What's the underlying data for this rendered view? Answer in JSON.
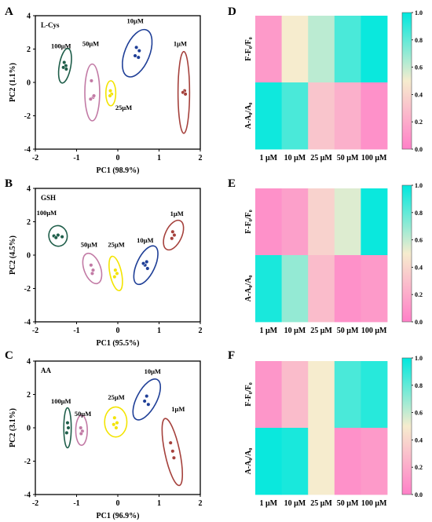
{
  "figure": {
    "colors": {
      "c100": "#1f5e4a",
      "c50": "#c27aa5",
      "c25": "#f3e400",
      "c10": "#1f3f97",
      "c1": "#a5413c",
      "heat_low": "#ff80c8",
      "heat_mid": "#f6ecce",
      "heat_high": "#00e8de"
    }
  },
  "chart_data": [
    {
      "panel": "A",
      "type": "scatter",
      "analyte": "L-Cys",
      "xlabel": "PC1 (98.9%)",
      "ylabel": "PC2 (1.1%)",
      "xlim": [
        -2,
        2
      ],
      "ylim": [
        -4,
        4
      ],
      "xticks": [
        "-2",
        "-1",
        "0",
        "1",
        "2"
      ],
      "yticks": [
        "-4",
        "-2",
        "0",
        "2",
        "4"
      ],
      "series": [
        {
          "name": "100μM",
          "color_key": "c100",
          "ellipse": {
            "cx": -1.28,
            "cy": 1.0,
            "rx": 0.14,
            "ry": 1.05,
            "rot": 10
          },
          "points": [
            [
              -1.3,
              1.2
            ],
            [
              -1.26,
              1.0
            ],
            [
              -1.32,
              0.9
            ],
            [
              -1.25,
              0.8
            ]
          ],
          "label": {
            "text": "100μM",
            "x": -1.62,
            "y": 2.05
          }
        },
        {
          "name": "50μM",
          "color_key": "c50",
          "ellipse": {
            "cx": -0.62,
            "cy": -0.6,
            "rx": 0.18,
            "ry": 1.7,
            "rot": 0
          },
          "points": [
            [
              -0.64,
              0.1
            ],
            [
              -0.6,
              -0.9
            ],
            [
              -0.66,
              -1.0
            ],
            [
              -0.58,
              -0.8
            ]
          ],
          "label": {
            "text": "50μM",
            "x": -0.86,
            "y": 2.2
          }
        },
        {
          "name": "25μM",
          "color_key": "c25",
          "ellipse": {
            "cx": -0.17,
            "cy": -0.65,
            "rx": 0.12,
            "ry": 0.75,
            "rot": 0
          },
          "points": [
            [
              -0.18,
              -0.5
            ],
            [
              -0.15,
              -0.7
            ],
            [
              -0.19,
              -0.8
            ]
          ],
          "label": {
            "text": "25μM",
            "x": -0.06,
            "y": -1.65
          }
        },
        {
          "name": "10μM",
          "color_key": "c10",
          "ellipse": {
            "cx": 0.47,
            "cy": 1.75,
            "rx": 0.3,
            "ry": 1.5,
            "rot": 22
          },
          "points": [
            [
              0.45,
              2.1
            ],
            [
              0.52,
              1.9
            ],
            [
              0.42,
              1.6
            ],
            [
              0.5,
              1.5
            ]
          ],
          "label": {
            "text": "10μM",
            "x": 0.22,
            "y": 3.55
          }
        },
        {
          "name": "1μM",
          "color_key": "c1",
          "ellipse": {
            "cx": 1.6,
            "cy": -0.6,
            "rx": 0.14,
            "ry": 2.45,
            "rot": 0
          },
          "points": [
            [
              1.62,
              -0.5
            ],
            [
              1.58,
              -0.6
            ],
            [
              1.64,
              -0.7
            ]
          ],
          "label": {
            "text": "1μM",
            "x": 1.35,
            "y": 2.2
          }
        }
      ]
    },
    {
      "panel": "B",
      "type": "scatter",
      "analyte": "GSH",
      "xlabel": "PC1 (95.5%)",
      "ylabel": "PC2 (4.5%)",
      "xlim": [
        -2,
        2
      ],
      "ylim": [
        -4,
        4
      ],
      "xticks": [
        "-2",
        "-1",
        "0",
        "1",
        "2"
      ],
      "yticks": [
        "-4",
        "-2",
        "0",
        "2",
        "4"
      ],
      "series": [
        {
          "name": "100μM",
          "color_key": "c100",
          "ellipse": {
            "cx": -1.45,
            "cy": 1.15,
            "rx": 0.25,
            "ry": 0.55,
            "rot": 80
          },
          "points": [
            [
              -1.55,
              1.15
            ],
            [
              -1.45,
              1.2
            ],
            [
              -1.35,
              1.1
            ],
            [
              -1.5,
              1.05
            ]
          ],
          "label": {
            "text": "100μM",
            "x": -1.97,
            "y": 2.4
          }
        },
        {
          "name": "50μM",
          "color_key": "c50",
          "ellipse": {
            "cx": -0.62,
            "cy": -0.8,
            "rx": 0.2,
            "ry": 0.95,
            "rot": -20
          },
          "points": [
            [
              -0.65,
              -0.6
            ],
            [
              -0.6,
              -0.9
            ],
            [
              -0.62,
              -1.1
            ]
          ],
          "label": {
            "text": "50μM",
            "x": -0.9,
            "y": 0.5
          }
        },
        {
          "name": "25μM",
          "color_key": "c25",
          "ellipse": {
            "cx": -0.05,
            "cy": -1.1,
            "rx": 0.14,
            "ry": 1.05,
            "rot": -12
          },
          "points": [
            [
              -0.06,
              -0.9
            ],
            [
              -0.02,
              -1.1
            ],
            [
              -0.08,
              -1.3
            ]
          ],
          "label": {
            "text": "25μM",
            "x": -0.24,
            "y": 0.5
          }
        },
        {
          "name": "10μM",
          "color_key": "c10",
          "ellipse": {
            "cx": 0.68,
            "cy": -0.6,
            "rx": 0.22,
            "ry": 1.25,
            "rot": 25
          },
          "points": [
            [
              0.7,
              -0.4
            ],
            [
              0.66,
              -0.6
            ],
            [
              0.72,
              -0.8
            ],
            [
              0.62,
              -0.5
            ]
          ],
          "label": {
            "text": "10μM",
            "x": 0.46,
            "y": 0.75
          }
        },
        {
          "name": "1μM",
          "color_key": "c1",
          "ellipse": {
            "cx": 1.35,
            "cy": 1.2,
            "rx": 0.2,
            "ry": 0.95,
            "rot": 25
          },
          "points": [
            [
              1.33,
              1.4
            ],
            [
              1.37,
              1.2
            ],
            [
              1.31,
              1.0
            ]
          ],
          "label": {
            "text": "1μM",
            "x": 1.27,
            "y": 2.35
          }
        }
      ]
    },
    {
      "panel": "C",
      "type": "scatter",
      "analyte": "AA",
      "xlabel": "PC1 (96.9%)",
      "ylabel": "PC2 (3.1%)",
      "xlim": [
        -2,
        2
      ],
      "ylim": [
        -4,
        4
      ],
      "xticks": [
        "-2",
        "-1",
        "0",
        "1",
        "2"
      ],
      "yticks": [
        "-4",
        "-2",
        "0",
        "2",
        "4"
      ],
      "series": [
        {
          "name": "100μM",
          "color_key": "c100",
          "ellipse": {
            "cx": -1.22,
            "cy": 0.0,
            "rx": 0.09,
            "ry": 1.2,
            "rot": 0
          },
          "points": [
            [
              -1.22,
              0.3
            ],
            [
              -1.2,
              0.0
            ],
            [
              -1.24,
              -0.3
            ]
          ],
          "label": {
            "text": "100μM",
            "x": -1.62,
            "y": 1.45
          }
        },
        {
          "name": "50μM",
          "color_key": "c50",
          "ellipse": {
            "cx": -0.88,
            "cy": -0.15,
            "rx": 0.14,
            "ry": 0.9,
            "rot": 0
          },
          "points": [
            [
              -0.9,
              0.0
            ],
            [
              -0.86,
              -0.2
            ],
            [
              -0.89,
              -0.35
            ]
          ],
          "label": {
            "text": "50μM",
            "x": -1.05,
            "y": 0.7
          }
        },
        {
          "name": "25μM",
          "color_key": "c25",
          "ellipse": {
            "cx": -0.05,
            "cy": 0.35,
            "rx": 0.27,
            "ry": 0.9,
            "rot": 0
          },
          "points": [
            [
              -0.08,
              0.6
            ],
            [
              -0.02,
              0.3
            ],
            [
              -0.1,
              0.2
            ],
            [
              -0.04,
              0.0
            ]
          ],
          "label": {
            "text": "25μM",
            "x": -0.24,
            "y": 1.7
          }
        },
        {
          "name": "10μM",
          "color_key": "c10",
          "ellipse": {
            "cx": 0.7,
            "cy": 1.7,
            "rx": 0.24,
            "ry": 1.35,
            "rot": 28
          },
          "points": [
            [
              0.7,
              1.9
            ],
            [
              0.65,
              1.6
            ],
            [
              0.74,
              1.4
            ]
          ],
          "label": {
            "text": "10μM",
            "x": 0.64,
            "y": 3.25
          }
        },
        {
          "name": "1μM",
          "color_key": "c1",
          "ellipse": {
            "cx": 1.32,
            "cy": -1.45,
            "rx": 0.18,
            "ry": 2.05,
            "rot": -12
          },
          "points": [
            [
              1.28,
              -0.9
            ],
            [
              1.33,
              -1.4
            ],
            [
              1.36,
              -1.8
            ]
          ],
          "label": {
            "text": "1μM",
            "x": 1.3,
            "y": 1.0
          }
        }
      ]
    },
    {
      "panel": "D",
      "type": "heatmap",
      "columns": [
        "1 μM",
        "10 μM",
        "25 μM",
        "50 μM",
        "100 μM"
      ],
      "rows": [
        "F-F₀/F₀",
        "A-A₀/A₀"
      ],
      "values": [
        [
          0.12,
          0.5,
          0.62,
          0.85,
          0.98
        ],
        [
          0.97,
          0.85,
          0.32,
          0.22,
          0.08
        ]
      ],
      "colorbar": {
        "range": [
          0.0,
          1.0
        ],
        "ticks": [
          "0.0",
          "0.2",
          "0.4",
          "0.6",
          "0.8",
          "1.0"
        ]
      }
    },
    {
      "panel": "E",
      "type": "heatmap",
      "columns": [
        "1 μM",
        "10 μM",
        "25 μM",
        "50 μM",
        "100 μM"
      ],
      "rows": [
        "F-F₀/F₀",
        "A-A₀/A₀"
      ],
      "values": [
        [
          0.08,
          0.15,
          0.38,
          0.55,
          0.98
        ],
        [
          0.95,
          0.7,
          0.28,
          0.08,
          0.12
        ]
      ],
      "colorbar": {
        "range": [
          0.0,
          1.0
        ],
        "ticks": [
          "0.0",
          "0.2",
          "0.4",
          "0.6",
          "0.8",
          "1.0"
        ]
      }
    },
    {
      "panel": "F",
      "type": "heatmap",
      "columns": [
        "1 μM",
        "10 μM",
        "25 μM",
        "50 μM",
        "100 μM"
      ],
      "rows": [
        "F-F₀/F₀",
        "A-A₀/A₀"
      ],
      "values": [
        [
          0.1,
          0.28,
          0.5,
          0.85,
          0.92
        ],
        [
          0.98,
          0.95,
          0.5,
          0.08,
          0.12
        ]
      ],
      "colorbar": {
        "range": [
          0.0,
          1.0
        ],
        "ticks": [
          "0.0",
          "0.2",
          "0.4",
          "0.6",
          "0.8",
          "1.0"
        ]
      }
    }
  ]
}
